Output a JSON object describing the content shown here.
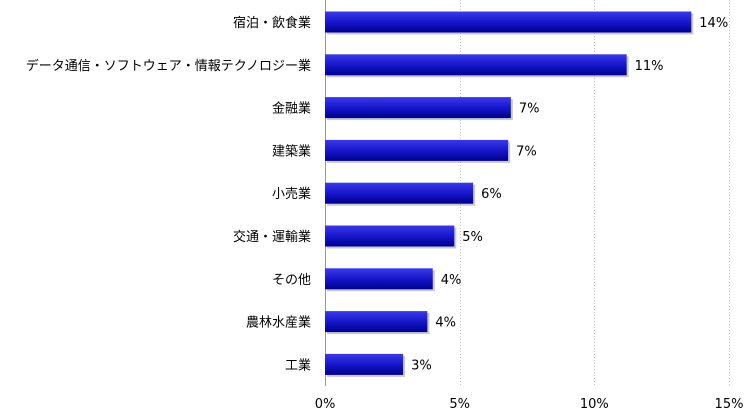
{
  "chart_data": {
    "type": "bar",
    "orientation": "horizontal",
    "categories": [
      "宿泊・飲食業",
      "データ通信・ソフトウェア・情報テクノロジー業",
      "金融業",
      "建築業",
      "小売業",
      "交通・運輸業",
      "その他",
      "農林水産業",
      "工業"
    ],
    "values": [
      13.6,
      11.2,
      6.9,
      6.8,
      5.5,
      4.8,
      4.0,
      3.8,
      2.9
    ],
    "value_labels": [
      "14%",
      "11%",
      "7%",
      "7%",
      "6%",
      "5%",
      "4%",
      "4%",
      "3%"
    ],
    "xlim": [
      0,
      15
    ],
    "xticks": [
      0,
      5,
      10,
      15
    ],
    "xtick_labels": [
      "0%",
      "5%",
      "10%",
      "15%"
    ],
    "grid": "vertical",
    "legend": "none",
    "colors": {
      "bar_dark": "#00008b",
      "bar_light": "#2f2fe0",
      "grid": "#c8c8c8"
    }
  }
}
